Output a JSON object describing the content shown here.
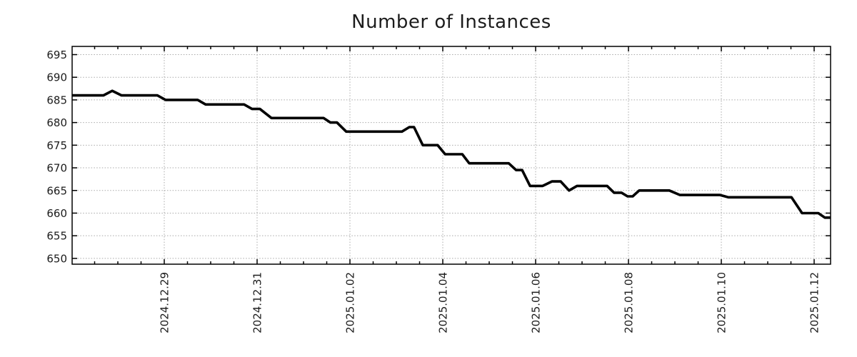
{
  "title": "Number of Instances",
  "chart_data": {
    "type": "line",
    "title": "Number of Instances",
    "series_name": "number-of-instances",
    "line_color": "#000000",
    "grid_color": "#a9a9a9",
    "frame_color": "#000000",
    "text_color": "#1c1c1c",
    "legend": "none",
    "grid": "dotted, at labeled ticks both axes",
    "x_axis": {
      "unit": "date",
      "range_days_from_first_label": [
        -1.985,
        14.35
      ],
      "minor_tick_interval_days": 0.5,
      "major_tick_interval_days": 2,
      "major_tick_positions_days": [
        0,
        2,
        4,
        6,
        8,
        10,
        12,
        14
      ],
      "major_tick_labels": [
        "2024.12.29",
        "2024.12.31",
        "2025.01.02",
        "2025.01.04",
        "2025.01.06",
        "2025.01.08",
        "2025.01.10",
        "2025.01.12"
      ],
      "label_rotation_deg": -90
    },
    "y_axis": {
      "range": [
        648.7,
        696.8
      ],
      "tick_interval": 5,
      "ticks": [
        650,
        655,
        660,
        665,
        670,
        675,
        680,
        685,
        690,
        695
      ]
    },
    "points": [
      [
        -1.98,
        686
      ],
      [
        -1.31,
        686
      ],
      [
        -1.12,
        687
      ],
      [
        -0.92,
        686
      ],
      [
        -0.15,
        686
      ],
      [
        0.03,
        685
      ],
      [
        0.72,
        685
      ],
      [
        0.89,
        684
      ],
      [
        1.72,
        684
      ],
      [
        1.89,
        683
      ],
      [
        2.06,
        683
      ],
      [
        2.31,
        681
      ],
      [
        3.43,
        681
      ],
      [
        3.58,
        680
      ],
      [
        3.72,
        680
      ],
      [
        3.92,
        678
      ],
      [
        5.12,
        678
      ],
      [
        5.28,
        679
      ],
      [
        5.38,
        679
      ],
      [
        5.57,
        675
      ],
      [
        5.89,
        675
      ],
      [
        6.05,
        673
      ],
      [
        6.42,
        673
      ],
      [
        6.57,
        671
      ],
      [
        7.42,
        671
      ],
      [
        7.58,
        669.5
      ],
      [
        7.71,
        669.5
      ],
      [
        7.88,
        666
      ],
      [
        8.15,
        666
      ],
      [
        8.35,
        667
      ],
      [
        8.54,
        667
      ],
      [
        8.72,
        665
      ],
      [
        8.89,
        666
      ],
      [
        9.54,
        666
      ],
      [
        9.69,
        664.5
      ],
      [
        9.85,
        664.5
      ],
      [
        9.98,
        663.7
      ],
      [
        10.09,
        663.7
      ],
      [
        10.23,
        665
      ],
      [
        10.88,
        665
      ],
      [
        11.11,
        664
      ],
      [
        11.97,
        664
      ],
      [
        12.15,
        663.5
      ],
      [
        13.51,
        663.5
      ],
      [
        13.74,
        660
      ],
      [
        14.09,
        660
      ],
      [
        14.23,
        659
      ],
      [
        14.35,
        659
      ]
    ]
  }
}
